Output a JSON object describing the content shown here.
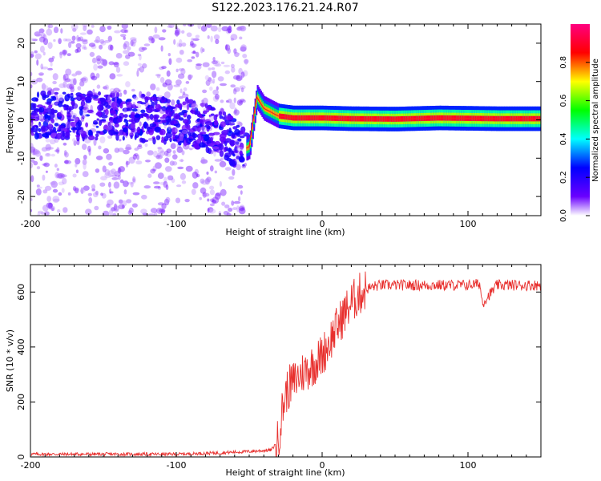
{
  "chart_data": [
    {
      "type": "heatmap",
      "title": "S122.2023.176.21.24.R07",
      "xlabel": "Height of straight line (km)",
      "ylabel": "Frequency (Hz)",
      "xlim": [
        -200,
        150
      ],
      "ylim": [
        -25,
        25
      ],
      "x_ticks": [
        -200,
        -100,
        0,
        100
      ],
      "y_ticks": [
        -20,
        -10,
        0,
        10,
        20
      ],
      "colorbar": {
        "label": "Normalized spectral amplitude",
        "range": [
          0,
          1
        ],
        "ticks": [
          "0.0",
          "0.2",
          "0.4",
          "0.6",
          "0.8"
        ],
        "tick_values": [
          0.0,
          0.2,
          0.4,
          0.6,
          0.8
        ],
        "colormap": "hsv-rainbow",
        "colors": [
          "#ffffff",
          "#6a00ff",
          "#0000ff",
          "#00ffff",
          "#00ff00",
          "#ffff00",
          "#ff0000",
          "#ff0080"
        ]
      },
      "ridge": {
        "x": [
          -200,
          -150,
          -100,
          -70,
          -60,
          -55,
          -50,
          -45,
          -40,
          -30,
          -20,
          0,
          20,
          50,
          80,
          100,
          120,
          150
        ],
        "frequency": [
          1,
          1,
          0,
          -3,
          -6,
          -8,
          -7,
          6,
          3,
          1,
          0.5,
          0.5,
          0.3,
          0.2,
          0.5,
          0.4,
          0.3,
          0.3
        ]
      },
      "regions": [
        {
          "x_range": [
            -200,
            -52
          ],
          "description": "scattered broadband",
          "amplitude": 0.15
        },
        {
          "x_range": [
            -52,
            150
          ],
          "description": "narrow coherent band near 0 Hz",
          "amplitude": 0.9
        }
      ]
    },
    {
      "type": "line",
      "xlabel": "Height of straight line (km)",
      "ylabel": "SNR (10 * v/v)",
      "xlim": [
        -200,
        150
      ],
      "ylim": [
        0,
        700
      ],
      "x_ticks": [
        -200,
        -100,
        0,
        100
      ],
      "y_ticks": [
        0,
        200,
        400,
        600
      ],
      "series": [
        {
          "color": "#e8302e",
          "x": [
            -200,
            -150,
            -100,
            -70,
            -50,
            -35,
            -30,
            -28,
            -25,
            -22,
            -20,
            -15,
            -10,
            -5,
            0,
            5,
            10,
            15,
            20,
            25,
            30,
            35,
            40,
            50,
            60,
            80,
            100,
            108,
            110,
            120,
            150
          ],
          "values": [
            10,
            10,
            10,
            15,
            20,
            25,
            60,
            150,
            230,
            260,
            270,
            300,
            320,
            340,
            370,
            420,
            470,
            520,
            560,
            590,
            610,
            620,
            625,
            625,
            625,
            625,
            625,
            630,
            560,
            625,
            625
          ]
        }
      ]
    }
  ]
}
